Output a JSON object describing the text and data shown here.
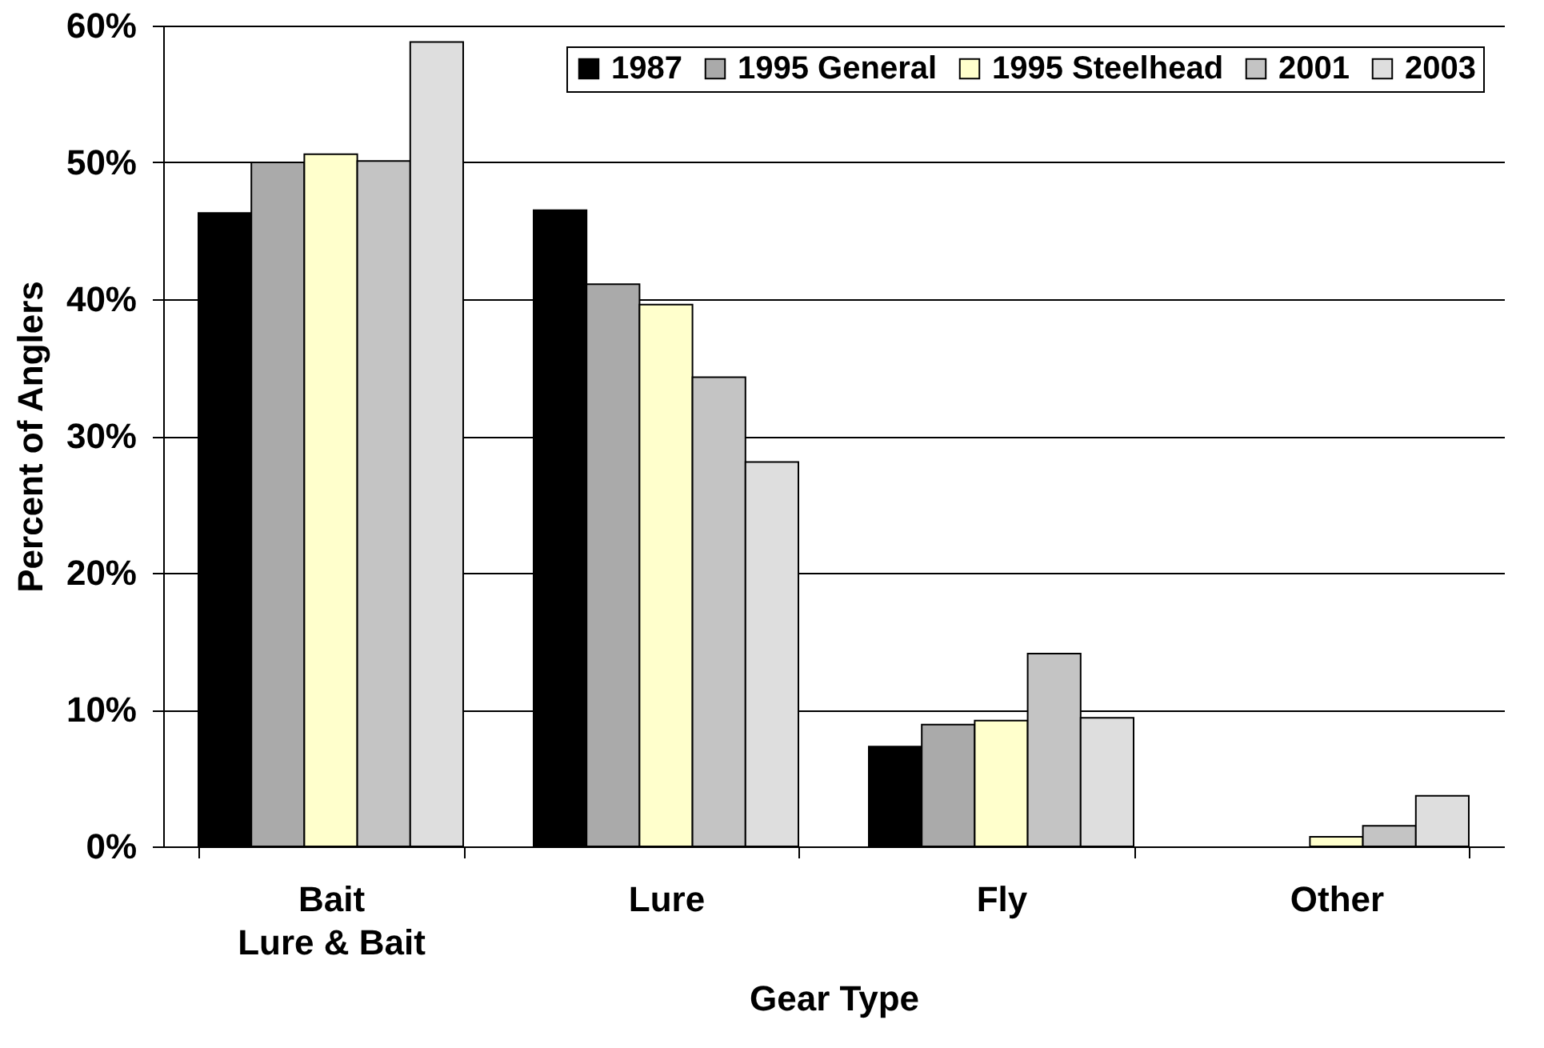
{
  "chart_data": {
    "type": "bar",
    "xlabel": "Gear Type",
    "ylabel": "Percent of Anglers",
    "categories": [
      "Bait\nLure & Bait",
      "Lure",
      "Fly",
      "Other"
    ],
    "series": [
      {
        "name": "1987",
        "color": "#000000",
        "values": [
          46.3,
          46.5,
          7.3,
          null
        ]
      },
      {
        "name": "1995 General",
        "color": "#aaaaaa",
        "values": [
          50.0,
          41.1,
          8.9,
          null
        ]
      },
      {
        "name": "1995 Steelhead",
        "color": "#ffffcc",
        "values": [
          50.6,
          39.6,
          9.2,
          0.7
        ]
      },
      {
        "name": "2001",
        "color": "#c4c4c4",
        "values": [
          50.1,
          34.3,
          14.1,
          1.5
        ]
      },
      {
        "name": "2003",
        "color": "#dedede",
        "values": [
          58.8,
          28.1,
          9.4,
          3.7
        ]
      }
    ],
    "ylim": [
      0,
      60
    ],
    "yticks": [
      {
        "value": 0,
        "label": "0%"
      },
      {
        "value": 10,
        "label": "10%"
      },
      {
        "value": 20,
        "label": "20%"
      },
      {
        "value": 30,
        "label": "30%"
      },
      {
        "value": 40,
        "label": "40%"
      },
      {
        "value": 50,
        "label": "50%"
      },
      {
        "value": 60,
        "label": "60%"
      }
    ],
    "grid": "y",
    "legend": "top right"
  }
}
